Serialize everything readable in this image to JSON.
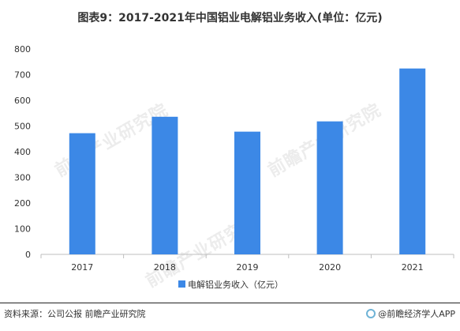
{
  "title": "图表9：2017-2021年中国铝业电解铝业务收入(单位：亿元)",
  "source": "资料来源：公司公报 前瞻产业研究院",
  "brand": "@前瞻经济学人APP",
  "watermark": "前瞻产业研究院",
  "colors": {
    "bar": "#3c88e6",
    "axis": "#bfbfbf",
    "text": "#333333"
  },
  "chart_data": {
    "type": "bar",
    "categories": [
      "2017",
      "2018",
      "2019",
      "2020",
      "2021"
    ],
    "series": [
      {
        "name": "电解铝业务收入（亿元）",
        "values": [
          472,
          536,
          478,
          518,
          724
        ]
      }
    ],
    "ylim": [
      0,
      800
    ],
    "yticks": [
      "0",
      "100",
      "200",
      "300",
      "400",
      "500",
      "600",
      "700",
      "800"
    ],
    "grid": false,
    "legend": "bottom-center"
  }
}
